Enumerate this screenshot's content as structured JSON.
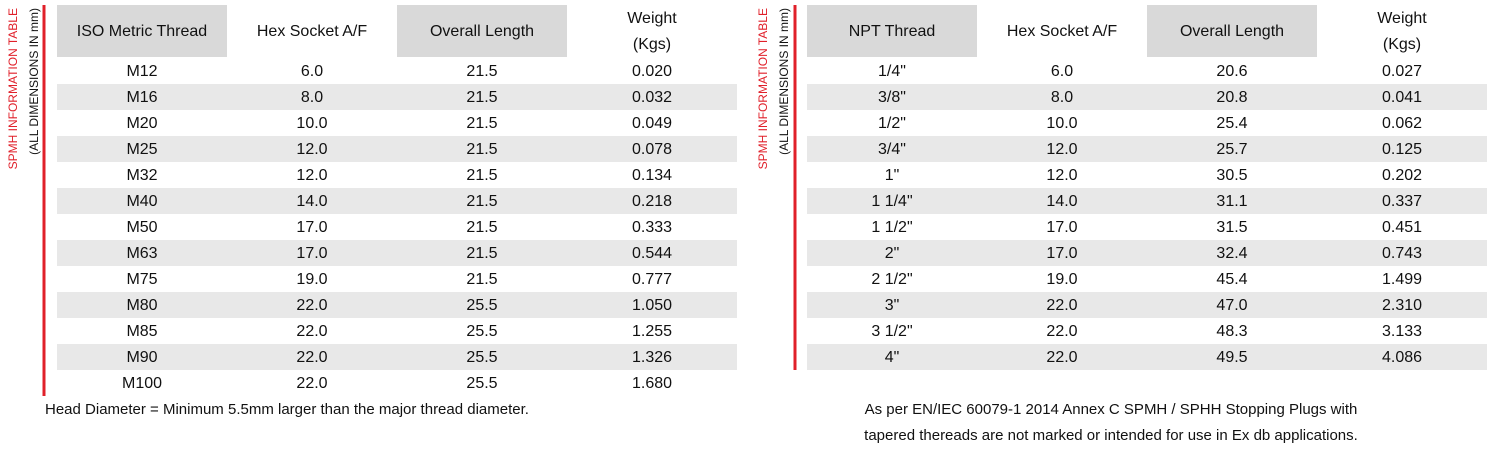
{
  "left": {
    "side_label": "SPMH INFORMATION TABLE",
    "side_sublabel": "(ALL DIMENSIONS IN mm)",
    "headers": [
      "ISO Metric Thread",
      "Hex Socket A/F",
      "Overall Length"
    ],
    "weight_header": [
      "Weight",
      "(Kgs)"
    ],
    "rows": [
      [
        "M12",
        "6.0",
        "21.5",
        "0.020"
      ],
      [
        "M16",
        "8.0",
        "21.5",
        "0.032"
      ],
      [
        "M20",
        "10.0",
        "21.5",
        "0.049"
      ],
      [
        "M25",
        "12.0",
        "21.5",
        "0.078"
      ],
      [
        "M32",
        "12.0",
        "21.5",
        "0.134"
      ],
      [
        "M40",
        "14.0",
        "21.5",
        "0.218"
      ],
      [
        "M50",
        "17.0",
        "21.5",
        "0.333"
      ],
      [
        "M63",
        "17.0",
        "21.5",
        "0.544"
      ],
      [
        "M75",
        "19.0",
        "21.5",
        "0.777"
      ],
      [
        "M80",
        "22.0",
        "25.5",
        "1.050"
      ],
      [
        "M85",
        "22.0",
        "25.5",
        "1.255"
      ],
      [
        "M90",
        "22.0",
        "25.5",
        "1.326"
      ],
      [
        "M100",
        "22.0",
        "25.5",
        "1.680"
      ]
    ],
    "note": [
      "Head Diameter = Minimum 5.5mm larger than the major thread diameter."
    ]
  },
  "right": {
    "side_label": "SPMH INFORMATION TABLE",
    "side_sublabel": "(ALL DIMENSIONS IN mm)",
    "headers": [
      "NPT Thread",
      "Hex Socket A/F",
      "Overall Length"
    ],
    "weight_header": [
      "Weight",
      "(Kgs)"
    ],
    "rows": [
      [
        "1/4\"",
        "6.0",
        "20.6",
        "0.027"
      ],
      [
        "3/8\"",
        "8.0",
        "20.8",
        "0.041"
      ],
      [
        "1/2\"",
        "10.0",
        "25.4",
        "0.062"
      ],
      [
        "3/4\"",
        "12.0",
        "25.7",
        "0.125"
      ],
      [
        "1\"",
        "12.0",
        "30.5",
        "0.202"
      ],
      [
        "1 1/4\"",
        "14.0",
        "31.1",
        "0.337"
      ],
      [
        "1 1/2\"",
        "17.0",
        "31.5",
        "0.451"
      ],
      [
        "2\"",
        "17.0",
        "32.4",
        "0.743"
      ],
      [
        "2 1/2\"",
        "19.0",
        "45.4",
        "1.499"
      ],
      [
        "3\"",
        "22.0",
        "47.0",
        "2.310"
      ],
      [
        "3 1/2\"",
        "22.0",
        "48.3",
        "3.133"
      ],
      [
        "4\"",
        "22.0",
        "49.5",
        "4.086"
      ]
    ],
    "note": [
      "As per EN/IEC 60079-1 2014 Annex C SPMH / SPHH Stopping Plugs with",
      "tapered thereads are not marked or intended for use in Ex db applications."
    ]
  }
}
